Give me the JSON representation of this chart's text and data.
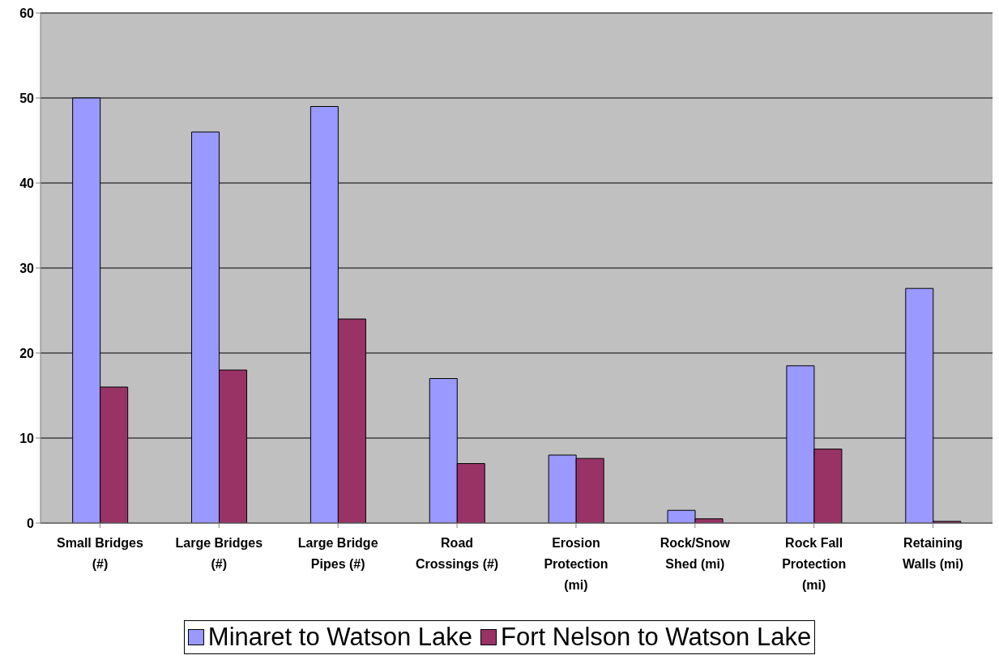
{
  "chart_data": {
    "type": "bar",
    "categories": [
      "Small Bridges (#)",
      "Large Bridges (#)",
      "Large Bridge Pipes (#)",
      "Road Crossings (#)",
      "Erosion Protection (mi)",
      "Rock/Snow Shed (mi)",
      "Rock Fall Protection (mi)",
      "Retaining Walls (mi)"
    ],
    "series": [
      {
        "name": "Minaret to Watson Lake",
        "color": "#9999ff",
        "values": [
          50,
          46,
          49,
          17,
          8,
          1.5,
          18.5,
          27.6
        ]
      },
      {
        "name": "Fort Nelson to Watson Lake",
        "color": "#993366",
        "values": [
          16,
          18,
          24,
          7,
          7.6,
          0.5,
          8.7,
          0.2
        ]
      }
    ],
    "ylim": [
      0,
      60
    ],
    "yticks": [
      0,
      10,
      20,
      30,
      40,
      50,
      60
    ],
    "grid": "y",
    "legend": "bottom"
  }
}
